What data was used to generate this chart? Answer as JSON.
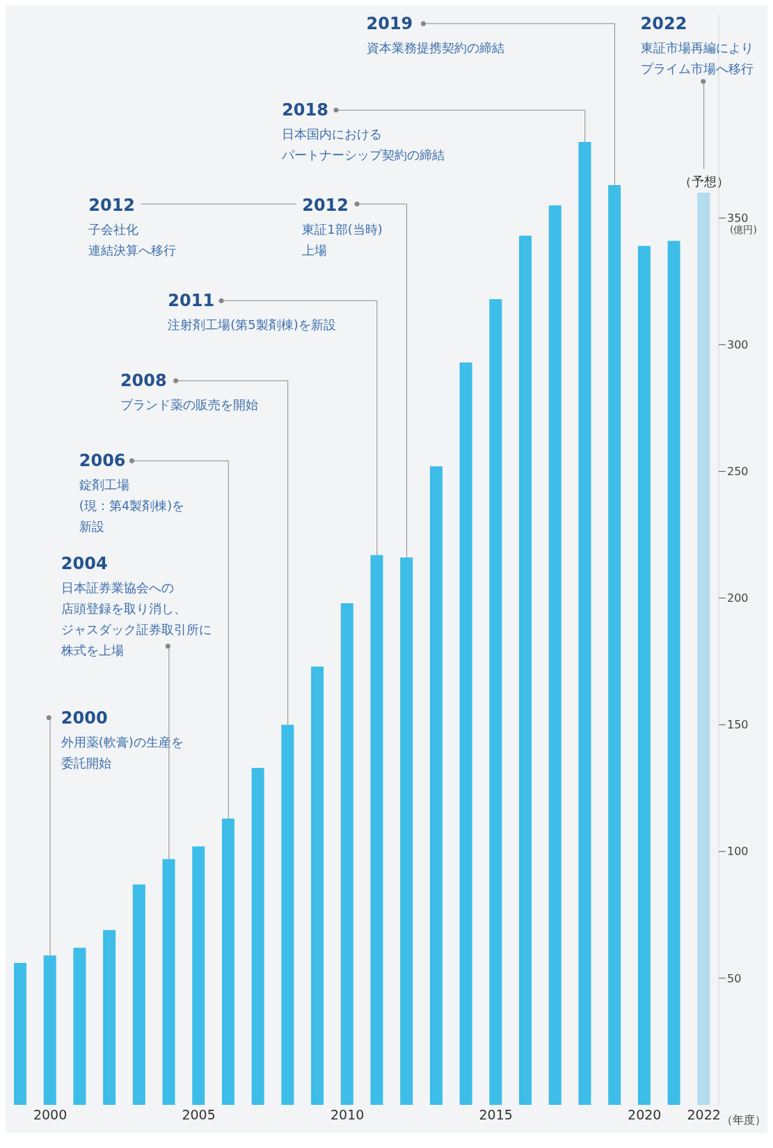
{
  "chart_data": {
    "type": "bar",
    "xlabel": "（年度）",
    "ylabel": "(億円)",
    "categories": [
      null,
      "2000",
      null,
      null,
      null,
      null,
      "2005",
      null,
      null,
      null,
      null,
      "2010",
      null,
      null,
      null,
      null,
      "2015",
      null,
      null,
      null,
      null,
      "2020",
      null,
      "2022"
    ],
    "values": [
      56,
      59,
      62,
      69,
      87,
      97,
      102,
      113,
      133,
      150,
      173,
      198,
      217,
      216,
      252,
      293,
      318,
      343,
      355,
      380,
      363,
      339,
      341,
      360
    ],
    "colors": [
      "#3dbde8",
      "#3dbde8",
      "#3dbde8",
      "#3dbde8",
      "#3dbde8",
      "#3dbde8",
      "#3dbde8",
      "#3dbde8",
      "#3dbde8",
      "#3dbde8",
      "#3dbde8",
      "#3dbde8",
      "#3dbde8",
      "#3dbde8",
      "#3dbde8",
      "#3dbde8",
      "#3dbde8",
      "#3dbde8",
      "#3dbde8",
      "#3dbde8",
      "#3dbde8",
      "#3dbde8",
      "#3dbde8",
      "#b3dcef"
    ],
    "ylim": [
      0,
      430
    ],
    "yticks": [
      50,
      100,
      150,
      200,
      250,
      300,
      350
    ],
    "annotations": [
      "2019\n資本業務提携契約の締結",
      "2022\n東証市場再編によりプライム市場へ移行",
      "2018\n日本国内におけるパートナーシップ契約の締結",
      "2012\n子会社化連結決算へ移行",
      "2012\n東証1部(当時)上場",
      "2011\n注射剤工場(第5製剤棟)を新設",
      "2008\nブランド薬の販売を開始",
      "2006\n錠剤工場(現：第4製剤棟)を新設",
      "2004\n日本証券業協会への店頭登録を取り消し、ジャスダック証券取引所に株式を上場",
      "2000\n外用薬(軟膏)の生産を委託開始",
      {
        "text": "（予想）",
        "x": "2022",
        "y": 360
      }
    ]
  }
}
